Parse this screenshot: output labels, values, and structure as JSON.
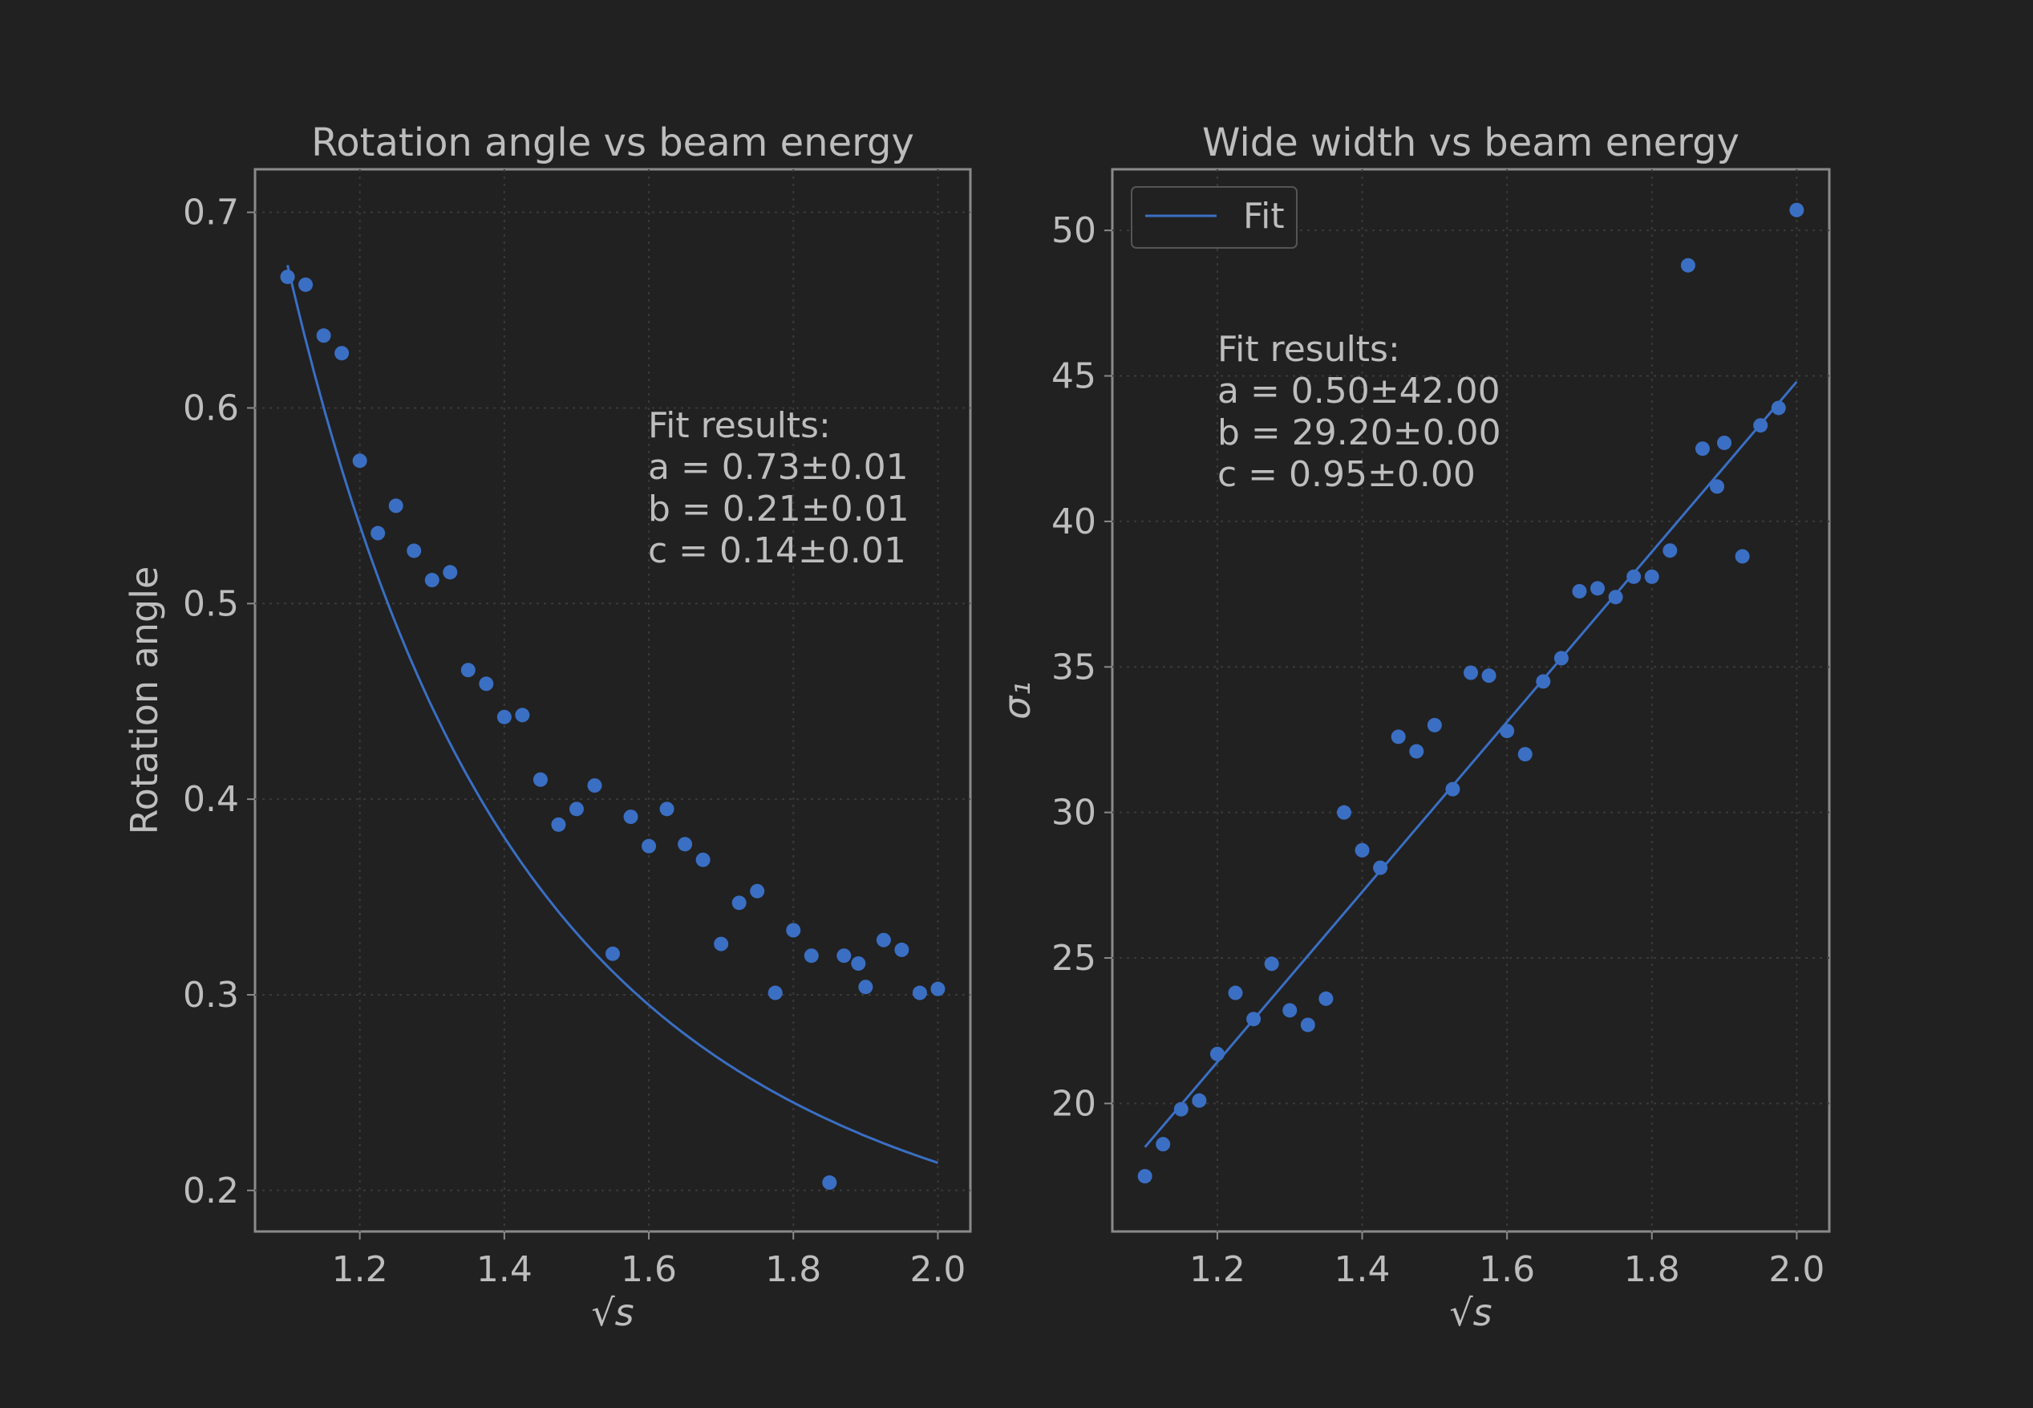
{
  "colors": {
    "background": "#212121",
    "axes_edge": "#8a8a8a",
    "text": "#bdbdbd",
    "grid": "#3a3a3a",
    "series": "#3a6fc4"
  },
  "chart_data": [
    {
      "type": "scatter",
      "title": "Rotation angle vs beam energy",
      "xlabel": "√s",
      "ylabel": "Rotation angle",
      "xlim": [
        1.055,
        2.045
      ],
      "ylim": [
        0.179,
        0.722
      ],
      "xticks": [
        1.2,
        1.4,
        1.6,
        1.8,
        2.0
      ],
      "xtick_labels": [
        "1.2",
        "1.4",
        "1.6",
        "1.8",
        "2.0"
      ],
      "yticks": [
        0.2,
        0.3,
        0.4,
        0.5,
        0.6,
        0.7
      ],
      "ytick_labels": [
        "0.2",
        "0.3",
        "0.4",
        "0.5",
        "0.6",
        "0.7"
      ],
      "grid": true,
      "legend": null,
      "annotation": [
        "Fit results:",
        "a = 0.73±0.01",
        "b = 0.21±0.01",
        "c = 0.14±0.01"
      ],
      "series": [
        {
          "kind": "points",
          "x": [
            1.1,
            1.125,
            1.15,
            1.175,
            1.2,
            1.225,
            1.25,
            1.275,
            1.3,
            1.325,
            1.35,
            1.375,
            1.4,
            1.425,
            1.45,
            1.475,
            1.5,
            1.525,
            1.55,
            1.575,
            1.6,
            1.625,
            1.65,
            1.675,
            1.7,
            1.725,
            1.75,
            1.775,
            1.8,
            1.825,
            1.85,
            1.87,
            1.89,
            1.9,
            1.925,
            1.95,
            1.975,
            2.0
          ],
          "y": [
            0.667,
            0.663,
            0.637,
            0.628,
            0.573,
            0.536,
            0.55,
            0.527,
            0.512,
            0.516,
            0.466,
            0.459,
            0.442,
            0.443,
            0.41,
            0.387,
            0.395,
            0.407,
            0.321,
            0.391,
            0.376,
            0.395,
            0.377,
            0.369,
            0.326,
            0.347,
            0.353,
            0.301,
            0.333,
            0.32,
            0.204,
            0.32,
            0.316,
            0.304,
            0.328,
            0.323,
            0.301,
            0.303
          ]
        },
        {
          "kind": "fit",
          "label": "",
          "model": "a * x^(-3.3) + c",
          "params": {
            "a": 0.73,
            "c": 0.14
          }
        }
      ]
    },
    {
      "type": "scatter",
      "title": "Wide width vs beam energy",
      "xlabel": "√s",
      "ylabel": "σ₁",
      "xlim": [
        1.055,
        2.045
      ],
      "ylim": [
        15.6,
        52.1
      ],
      "xticks": [
        1.2,
        1.4,
        1.6,
        1.8,
        2.0
      ],
      "xtick_labels": [
        "1.2",
        "1.4",
        "1.6",
        "1.8",
        "2.0"
      ],
      "yticks": [
        20,
        25,
        30,
        35,
        40,
        45,
        50
      ],
      "ytick_labels": [
        "20",
        "25",
        "30",
        "35",
        "40",
        "45",
        "50"
      ],
      "grid": true,
      "legend": {
        "position": "top-left",
        "entries": [
          "Fit"
        ]
      },
      "annotation": [
        "Fit results:",
        "a = 0.50±42.00",
        "b = 29.20±0.00",
        "c = 0.95±0.00"
      ],
      "series": [
        {
          "kind": "points",
          "x": [
            1.1,
            1.125,
            1.15,
            1.175,
            1.2,
            1.225,
            1.25,
            1.275,
            1.3,
            1.325,
            1.35,
            1.375,
            1.4,
            1.425,
            1.45,
            1.475,
            1.5,
            1.525,
            1.55,
            1.575,
            1.6,
            1.625,
            1.65,
            1.675,
            1.7,
            1.725,
            1.75,
            1.775,
            1.8,
            1.825,
            1.85,
            1.87,
            1.89,
            1.9,
            1.925,
            1.95,
            1.975,
            2.0
          ],
          "y": [
            17.5,
            18.6,
            19.8,
            20.1,
            21.7,
            23.8,
            22.9,
            24.8,
            23.2,
            22.7,
            23.6,
            30.0,
            28.7,
            28.1,
            32.6,
            32.1,
            33.0,
            30.8,
            34.8,
            34.7,
            32.8,
            32.0,
            34.5,
            35.3,
            37.6,
            37.7,
            37.4,
            38.1,
            38.1,
            39.0,
            48.8,
            42.5,
            41.2,
            42.7,
            38.8,
            43.3,
            43.9,
            50.7
          ]
        },
        {
          "kind": "fit",
          "label": "Fit",
          "model": "linear",
          "endpoints": {
            "x": [
              1.1,
              2.0
            ],
            "y": [
              18.5,
              44.8
            ]
          }
        }
      ]
    }
  ]
}
